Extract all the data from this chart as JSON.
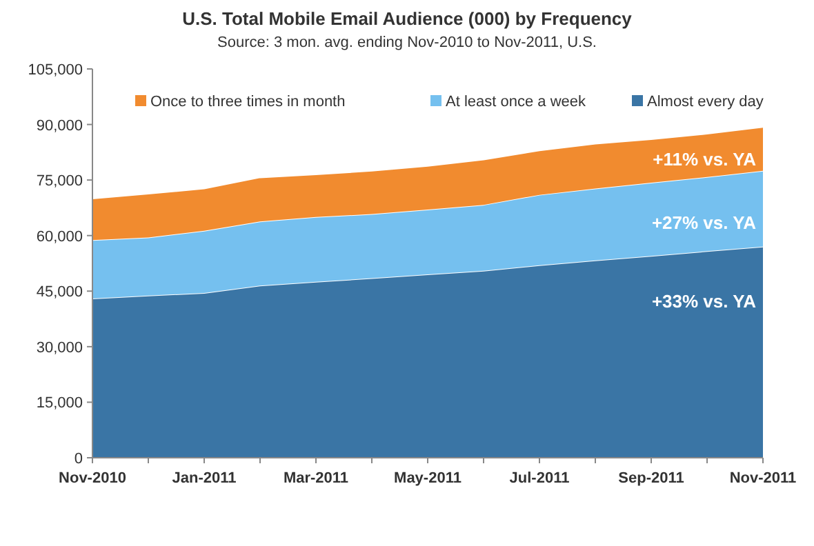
{
  "chart_data": {
    "type": "area",
    "stacked": true,
    "title": "U.S. Total Mobile Email Audience (000) by Frequency",
    "subtitle": "Source: 3 mon. avg. ending Nov-2010 to Nov-2011, U.S.",
    "categories": [
      "Nov-2010",
      null,
      "Jan-2011",
      null,
      "Mar-2011",
      null,
      "May-2011",
      null,
      "Jul-2011",
      null,
      "Sep-2011",
      null,
      "Nov-2011"
    ],
    "series": [
      {
        "name": "Almost every day",
        "color": "#3a75a5",
        "values": [
          43000,
          43800,
          44500,
          46500,
          47500,
          48500,
          49500,
          50500,
          52000,
          53300,
          54500,
          55800,
          57000
        ]
      },
      {
        "name": "At least once a week",
        "color": "#75c0ef",
        "values": [
          15800,
          15700,
          16800,
          17300,
          17500,
          17300,
          17500,
          17800,
          19000,
          19400,
          19800,
          20000,
          20500
        ]
      },
      {
        "name": "Once to three times in month",
        "color": "#f18b2f",
        "values": [
          11200,
          11800,
          11400,
          11900,
          11500,
          11700,
          11800,
          12200,
          12000,
          12100,
          11700,
          11700,
          11800
        ]
      }
    ],
    "ylim": [
      0,
      105000
    ],
    "yticks": [
      {
        "value": 0,
        "label": "0"
      },
      {
        "value": 15000,
        "label": "15,000"
      },
      {
        "value": 30000,
        "label": "30,000"
      },
      {
        "value": 45000,
        "label": "45,000"
      },
      {
        "value": 60000,
        "label": "60,000"
      },
      {
        "value": 75000,
        "label": "75,000"
      },
      {
        "value": 90000,
        "label": "90,000"
      },
      {
        "value": 105000,
        "label": "105,000"
      }
    ],
    "legend": "top",
    "grid": false,
    "annotations": [
      {
        "text": "+11% vs. YA",
        "x": "Nov-2011",
        "y": 80800
      },
      {
        "text": "+27% vs. YA",
        "x": "Nov-2011",
        "y": 63700
      },
      {
        "text": "+33% vs. YA",
        "x": "Nov-2011",
        "y": 42400
      }
    ]
  }
}
